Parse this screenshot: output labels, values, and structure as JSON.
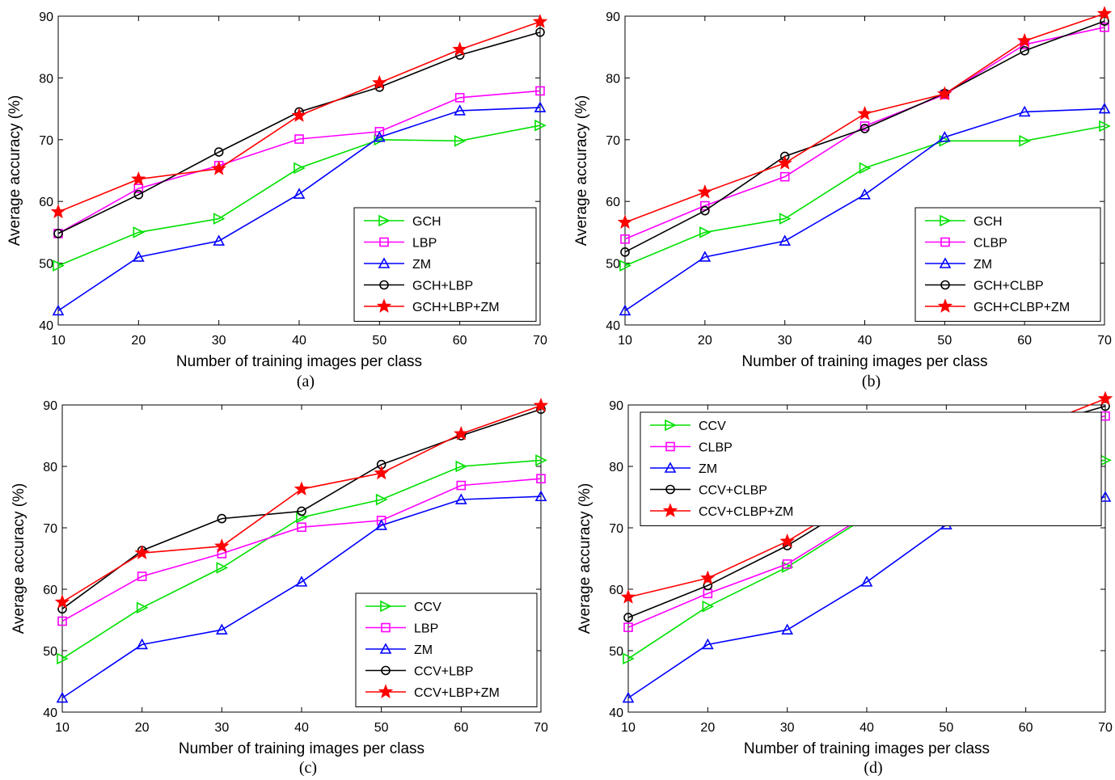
{
  "styles": {
    "GCH": "#00e000",
    "CCV": "#00e000",
    "LBP": "#ff00ff",
    "CLBP": "#ff00ff",
    "ZM": "#0000ff",
    "GCH+LBP": "#000000",
    "GCH+CLBP": "#000000",
    "CCV+LBP": "#000000",
    "CCV+CLBP": "#000000",
    "GCH+LBP+ZM": "#ff0000",
    "GCH+CLBP+ZM": "#ff0000",
    "CCV+LBP+ZM": "#ff0000",
    "CCV+CLBP+ZM": "#ff0000"
  },
  "chart_data": [
    {
      "type": "line",
      "caption": "(a)",
      "xlabel": "Number of training images per class",
      "ylabel": "Average accuracy (%)",
      "xlim": [
        10,
        70
      ],
      "ylim": [
        40,
        90
      ],
      "xticks": [
        10,
        20,
        30,
        40,
        50,
        60,
        70
      ],
      "yticks": [
        40,
        50,
        60,
        70,
        80,
        90
      ],
      "legend": "bottom-right",
      "x": [
        10,
        20,
        30,
        40,
        50,
        60,
        70
      ],
      "series": [
        {
          "name": "GCH",
          "marker": "triangle-right",
          "values": [
            49.6,
            55.0,
            57.2,
            65.4,
            70.0,
            69.8,
            72.3
          ]
        },
        {
          "name": "LBP",
          "marker": "square",
          "values": [
            54.8,
            62.1,
            65.8,
            70.1,
            71.3,
            76.8,
            77.9
          ]
        },
        {
          "name": "ZM",
          "marker": "triangle-up",
          "values": [
            42.3,
            51.0,
            53.6,
            61.2,
            70.4,
            74.7,
            75.2
          ]
        },
        {
          "name": "GCH+LBP",
          "marker": "circle",
          "values": [
            54.8,
            61.1,
            68.0,
            74.5,
            78.5,
            83.7,
            87.4
          ]
        },
        {
          "name": "GCH+LBP+ZM",
          "marker": "star",
          "values": [
            58.3,
            63.6,
            65.3,
            73.9,
            79.2,
            84.6,
            89.1
          ]
        }
      ]
    },
    {
      "type": "line",
      "caption": "(b)",
      "xlabel": "Number of training images per class",
      "ylabel": "Average accuracy (%)",
      "xlim": [
        10,
        70
      ],
      "ylim": [
        40,
        90
      ],
      "xticks": [
        10,
        20,
        30,
        40,
        50,
        60,
        70
      ],
      "yticks": [
        40,
        50,
        60,
        70,
        80,
        90
      ],
      "legend": "bottom-right",
      "x": [
        10,
        20,
        30,
        40,
        50,
        60,
        70
      ],
      "series": [
        {
          "name": "GCH",
          "marker": "triangle-right",
          "values": [
            49.6,
            55.0,
            57.2,
            65.4,
            69.8,
            69.8,
            72.2
          ]
        },
        {
          "name": "CLBP",
          "marker": "square",
          "values": [
            53.9,
            59.3,
            64.0,
            72.2,
            77.3,
            85.4,
            88.2
          ]
        },
        {
          "name": "ZM",
          "marker": "triangle-up",
          "values": [
            42.3,
            51.0,
            53.6,
            61.1,
            70.4,
            74.5,
            75.0
          ]
        },
        {
          "name": "GCH+CLBP",
          "marker": "circle",
          "values": [
            51.8,
            58.5,
            67.3,
            71.8,
            77.5,
            84.4,
            89.2
          ]
        },
        {
          "name": "GCH+CLBP+ZM",
          "marker": "star",
          "values": [
            56.6,
            61.5,
            66.2,
            74.2,
            77.4,
            86.0,
            90.4
          ]
        }
      ]
    },
    {
      "type": "line",
      "caption": "(c)",
      "xlabel": "Number of training images per class",
      "ylabel": "Average accuracy (%)",
      "xlim": [
        10,
        70
      ],
      "ylim": [
        40,
        90
      ],
      "xticks": [
        10,
        20,
        30,
        40,
        50,
        60,
        70
      ],
      "yticks": [
        40,
        50,
        60,
        70,
        80,
        90
      ],
      "legend": "bottom-right",
      "x": [
        10,
        20,
        30,
        40,
        50,
        60,
        70
      ],
      "series": [
        {
          "name": "CCV",
          "marker": "triangle-right",
          "values": [
            48.7,
            57.0,
            63.5,
            71.7,
            74.6,
            80.0,
            81.0
          ]
        },
        {
          "name": "LBP",
          "marker": "square",
          "values": [
            54.8,
            62.1,
            65.8,
            70.1,
            71.2,
            76.9,
            78.0
          ]
        },
        {
          "name": "ZM",
          "marker": "triangle-up",
          "values": [
            42.3,
            51.0,
            53.4,
            61.2,
            70.4,
            74.6,
            75.1
          ]
        },
        {
          "name": "CCV+LBP",
          "marker": "circle",
          "values": [
            56.8,
            66.3,
            71.5,
            72.7,
            80.3,
            85.0,
            89.3
          ]
        },
        {
          "name": "CCV+LBP+ZM",
          "marker": "star",
          "values": [
            57.9,
            65.9,
            67.0,
            76.3,
            78.9,
            85.3,
            89.9
          ]
        }
      ]
    },
    {
      "type": "line",
      "caption": "(d)",
      "xlabel": "Number of training images per class",
      "ylabel": "Average accuracy (%)",
      "xlim": [
        10,
        70
      ],
      "ylim": [
        40,
        90
      ],
      "xticks": [
        10,
        20,
        30,
        40,
        50,
        60,
        70
      ],
      "yticks": [
        40,
        50,
        60,
        70,
        80,
        90
      ],
      "legend": "top-left",
      "x": [
        10,
        20,
        30,
        40,
        50,
        60,
        70
      ],
      "series": [
        {
          "name": "CCV",
          "marker": "triangle-right",
          "values": [
            48.7,
            57.2,
            63.6,
            71.8,
            74.5,
            80.1,
            81.0
          ]
        },
        {
          "name": "CLBP",
          "marker": "square",
          "values": [
            53.8,
            59.3,
            64.1,
            72.1,
            77.5,
            85.6,
            88.2
          ]
        },
        {
          "name": "ZM",
          "marker": "triangle-up",
          "values": [
            42.3,
            51.0,
            53.4,
            61.2,
            70.5,
            74.7,
            75.0
          ]
        },
        {
          "name": "CCV+CLBP",
          "marker": "circle",
          "values": [
            55.4,
            60.6,
            67.1,
            75.0,
            81.2,
            86.1,
            89.8
          ]
        },
        {
          "name": "CCV+CLBP+ZM",
          "marker": "star",
          "values": [
            58.7,
            61.8,
            67.8,
            75.6,
            79.6,
            85.9,
            91.0
          ]
        }
      ]
    }
  ]
}
